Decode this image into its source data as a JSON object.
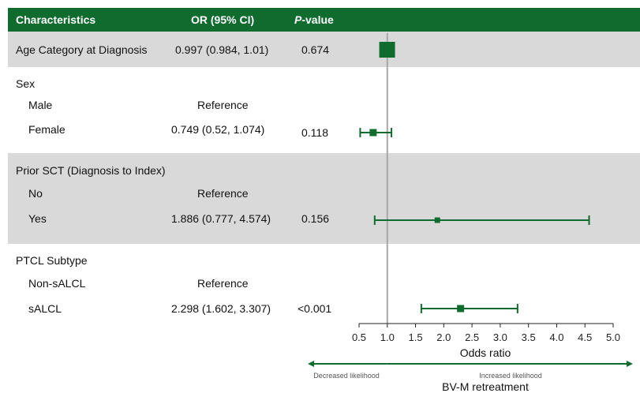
{
  "header": {
    "col1": "Characteristics",
    "col2": "OR (95% CI)",
    "col3_italic": "P",
    "col3_rest": "-value"
  },
  "rows": [
    {
      "label": "Age Category at Diagnosis",
      "or": "0.997 (0.984, 1.01)",
      "p": "0.674"
    },
    {
      "label": "Sex",
      "or": "",
      "p": ""
    },
    {
      "label": "Male",
      "or": "Reference",
      "p": ""
    },
    {
      "label": "Female",
      "or": "0.749 (0.52, 1.074)",
      "p": "0.118"
    },
    {
      "label": "Prior SCT (Diagnosis to Index)",
      "or": "",
      "p": ""
    },
    {
      "label": "No",
      "or": "Reference",
      "p": ""
    },
    {
      "label": "Yes",
      "or": "1.886 (0.777, 4.574)",
      "p": "0.156"
    },
    {
      "label": "PTCL Subtype",
      "or": "",
      "p": ""
    },
    {
      "label": "Non-sALCL",
      "or": "Reference",
      "p": ""
    },
    {
      "label": "sALCL",
      "or": "2.298 (1.602, 3.307)",
      "p": "<0.001"
    }
  ],
  "chart_data": {
    "type": "forest",
    "xlabel": "Odds ratio",
    "xlim": [
      0.5,
      5.0
    ],
    "ticks": [
      0.5,
      1.0,
      1.5,
      2.0,
      2.5,
      3.0,
      3.5,
      4.0,
      4.5,
      5.0
    ],
    "tick_labels": [
      "0.5",
      "1.0",
      "1.5",
      "2.0",
      "2.5",
      "3.0",
      "3.5",
      "4.0",
      "4.5",
      "5.0"
    ],
    "reference_line": 1.0,
    "points": [
      {
        "name": "Age Category at Diagnosis",
        "or": 0.997,
        "lo": 0.984,
        "hi": 1.01
      },
      {
        "name": "Female",
        "or": 0.749,
        "lo": 0.52,
        "hi": 1.074
      },
      {
        "name": "Yes",
        "or": 1.886,
        "lo": 0.777,
        "hi": 4.574
      },
      {
        "name": "sALCL",
        "or": 2.298,
        "lo": 1.602,
        "hi": 3.307
      }
    ],
    "left_annotation": "Decreased likelihood",
    "right_annotation": "Increased likelihood",
    "outcome_label": "BV-M retreatment",
    "marker_color": "#0f6b2e",
    "header_color": "#0f6b2e",
    "band_color": "#d9d9d9"
  }
}
